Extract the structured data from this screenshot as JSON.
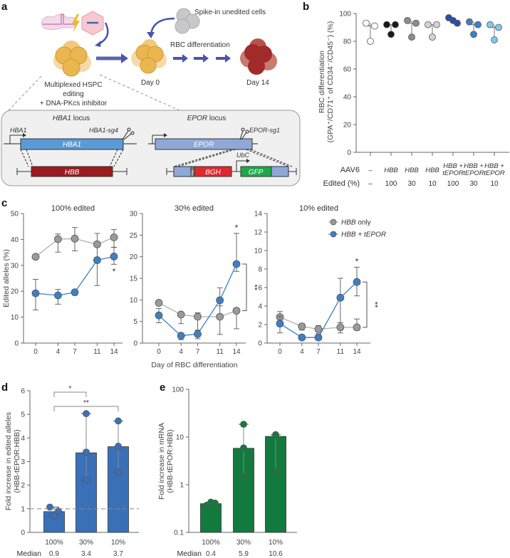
{
  "panel_labels": {
    "a": "a",
    "b": "b",
    "c": "c",
    "d": "d",
    "e": "e"
  },
  "schematic": {
    "spike_in": "Spike-in unedited cells",
    "rbc_diff": "RBC differentiation",
    "day0": "Day 0",
    "day14": "Day 14",
    "editing_lines": [
      "Multiplexed HSPC",
      "editing",
      "+ DNA-PKcs inhibitor"
    ],
    "hba1_locus": {
      "gene": "HBA1",
      "suffix": " locus"
    },
    "epor_locus": {
      "gene": "EPOR",
      "suffix": " locus"
    },
    "hba1_promoter": "HBA1",
    "hba1_sg": "HBA1-sg4",
    "hba1_box": "HBA1",
    "hbb_box": "HBB",
    "epor_sg": "EPOR-sg1",
    "epor_box": "EPOR",
    "stop": "Stop",
    "bgh": "BGH",
    "ubc": "UbC",
    "gfp": "GFP",
    "colors": {
      "hba1": "#5b9bd5",
      "hbb": "#9b1b1f",
      "epor": "#8fa8d8",
      "bgh": "#e0282e",
      "gfp": "#1fa84a"
    }
  },
  "chart_data": [
    {
      "id": "b",
      "type": "scatter",
      "ylabel": [
        "RBC differentiation",
        "(GPA⁺/CD71⁺ of CD34⁻/CD45⁻) (%)"
      ],
      "ylim": [
        0,
        100
      ],
      "yticks": [
        0,
        20,
        40,
        60,
        80,
        100
      ],
      "row_labels": {
        "aav6": "AAV6",
        "edited": "Edited (%)"
      },
      "groups": [
        {
          "aav6": [
            "–"
          ],
          "edited": "–",
          "color": "#ffffff",
          "values": [
            93,
            91,
            80
          ],
          "median": 91
        },
        {
          "aav6": [
            "HBB"
          ],
          "edited": "100",
          "color": "#1a1a1a",
          "values": [
            92,
            92,
            85
          ],
          "median": 92
        },
        {
          "aav6": [
            "HBB"
          ],
          "edited": "30",
          "color": "#8c8c8c",
          "values": [
            95,
            93,
            83
          ],
          "median": 93
        },
        {
          "aav6": [
            "HBB"
          ],
          "edited": "10",
          "color": "#d2d2d2",
          "values": [
            92,
            92,
            83
          ],
          "median": 92
        },
        {
          "aav6": [
            "HBB +",
            "tEPOR"
          ],
          "edited": "100",
          "color": "#2b4ea2",
          "values": [
            97,
            93,
            95
          ],
          "median": 95
        },
        {
          "aav6": [
            "HBB +",
            "tEPOR"
          ],
          "edited": "30",
          "color": "#3d7fc4",
          "values": [
            94,
            92,
            85
          ],
          "median": 92
        },
        {
          "aav6": [
            "HBB +",
            "tEPOR"
          ],
          "edited": "10",
          "color": "#7ccbee",
          "values": [
            92,
            90,
            81
          ],
          "median": 90
        }
      ]
    },
    {
      "id": "c",
      "type": "line",
      "ylabel": "Edited alleles (%)",
      "xlabel": "Day of RBC differentiation",
      "x": [
        0,
        4,
        7,
        11,
        14
      ],
      "legend": [
        {
          "name_italic": "HBB",
          "name_rest": " only",
          "color": "#9a9a9a"
        },
        {
          "name_italic": "HBB + tEPOR",
          "name_rest": "",
          "color": "#3d7fc4"
        }
      ],
      "legend_position": "top-right",
      "plots": [
        {
          "title": "100% edited",
          "ylim": [
            0,
            50
          ],
          "yticks": [
            0,
            10,
            20,
            30,
            40,
            50
          ],
          "series": [
            {
              "name": "HBB only",
              "values": [
                33.3,
                40.1,
                40.3,
                38.1,
                40.8
              ],
              "err": [
                [
                  33.3,
                  33.3
                ],
                [
                  35.1,
                  42.1
                ],
                [
                  35.6,
                  44.6
                ],
                [
                  33,
                  42.3
                ],
                [
                  37,
                  43.8
                ]
              ]
            },
            {
              "name": "HBB + tEPOR",
              "values": [
                19.2,
                18.4,
                19.6,
                32.0,
                33.4
              ],
              "err": [
                [
                  12.8,
                  24.6
                ],
                [
                  15,
                  20.7
                ],
                [
                  18.5,
                  20
                ],
                [
                  22.2,
                  32.8
                ],
                [
                  30.4,
                  36.9
                ]
              ]
            }
          ],
          "annotations": [
            {
              "label": "*",
              "day": 14,
              "pos": "below"
            }
          ]
        },
        {
          "title": "30% edited",
          "ylim": [
            0,
            30
          ],
          "yticks": [
            0,
            5,
            10,
            15,
            20,
            25,
            30
          ],
          "series": [
            {
              "name": "HBB only",
              "values": [
                9.3,
                6.6,
                6.1,
                6.1,
                7.5
              ],
              "err": [
                [
                  9,
                  9.6
                ],
                [
                  4.5,
                  7
                ],
                [
                  2.9,
                  7
                ],
                [
                  2,
                  10
                ],
                [
                  3.3,
                  8
                ]
              ]
            },
            {
              "name": "HBB + tEPOR",
              "values": [
                6.4,
                1.7,
                2.1,
                9.9,
                18.3
              ],
              "err": [
                [
                  4.7,
                  8
                ],
                [
                  0.8,
                  2
                ],
                [
                  1,
                  3
                ],
                [
                  8.6,
                  12.8
                ],
                [
                  16.6,
                  25.4
                ]
              ]
            }
          ],
          "annotations": [
            {
              "label": "*",
              "day": 14,
              "pos": "above"
            },
            {
              "label": "**",
              "day": 14,
              "pos": "bracket"
            }
          ]
        },
        {
          "title": "10% edited",
          "ylim": [
            0,
            14
          ],
          "yticks": [
            0,
            2,
            4,
            6,
            8,
            10,
            12,
            14
          ],
          "series": [
            {
              "name": "HBB only",
              "values": [
                2.8,
                1.8,
                1.5,
                1.7,
                1.7
              ],
              "err": [
                [
                  2.2,
                  3.4
                ],
                [
                  1.4,
                  2.1
                ],
                [
                  1.2,
                  1.9
                ],
                [
                  1.1,
                  2.2
                ],
                [
                  1.4,
                  2.6
                ]
              ]
            },
            {
              "name": "HBB + tEPOR",
              "values": [
                2.1,
                0.6,
                0.6,
                4.9,
                6.6
              ],
              "err": [
                [
                  1.1,
                  2.9
                ],
                [
                  0.5,
                  0.7
                ],
                [
                  0.4,
                  1
                ],
                [
                  2.2,
                  7.0
                ],
                [
                  5.1,
                  8.2
                ]
              ]
            }
          ],
          "annotations": [
            {
              "label": "*",
              "day": 14,
              "pos": "above"
            },
            {
              "label": "**",
              "day": 14,
              "pos": "bracket"
            }
          ]
        }
      ]
    },
    {
      "id": "d",
      "type": "bar",
      "ylabel": [
        "Fold increase in edited alleles",
        "(HBB-tEPOR:HBB)"
      ],
      "ylim": [
        0,
        6
      ],
      "yticks": [
        0,
        1,
        2,
        3,
        4,
        5,
        6
      ],
      "reference_line": 1,
      "categories": [
        "100%",
        "30%",
        "10%"
      ],
      "values": [
        0.88,
        3.37,
        3.63
      ],
      "points": [
        [
          1.07,
          0.7,
          0.9
        ],
        [
          5.03,
          3.4,
          2.22
        ],
        [
          4.72,
          3.65,
          2.55
        ]
      ],
      "median_label": "Median",
      "medians": [
        "0.9",
        "3.4",
        "3.7"
      ],
      "color": "#3a70b8",
      "significance": [
        {
          "from": 0,
          "to": 1,
          "label": "*"
        },
        {
          "from": 0,
          "to": 2,
          "label": "**"
        }
      ]
    },
    {
      "id": "e",
      "type": "bar",
      "yscale": "log",
      "ylabel": [
        "Fold increase in mRNA",
        "(HBB-tEPOR:HBB)"
      ],
      "ylim": [
        0.1,
        100
      ],
      "yticks": [
        0.1,
        1,
        10,
        100
      ],
      "ytick_labels": [
        "0.1",
        "1",
        "10",
        "100"
      ],
      "categories": [
        "100%",
        "30%",
        "10%"
      ],
      "values": [
        0.4,
        5.8,
        10.3
      ],
      "points": [
        [
          0.37,
          0.43,
          0.41
        ],
        [
          18.5,
          5.9,
          1.45
        ],
        [
          11.2,
          10.6,
          1.85
        ]
      ],
      "median_label": "Median",
      "medians": [
        "0.4",
        "5.9",
        "10.6"
      ],
      "color": "#127a3c"
    }
  ]
}
